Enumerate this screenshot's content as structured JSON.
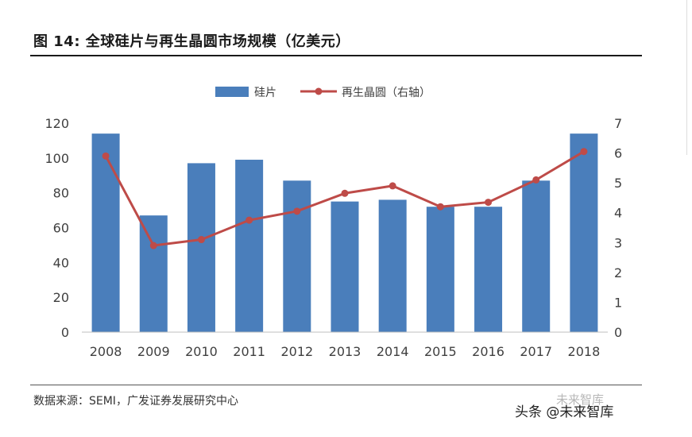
{
  "figure": {
    "title": "图 14: 全球硅片与再生晶圆市场规模（亿美元）",
    "source": "数据来源：SEMI，广发证券发展研究中心",
    "watermark": "头条 @未来智库",
    "watermark_ghost": "未来智库"
  },
  "chart_data": {
    "type": "bar",
    "categories": [
      "2008",
      "2009",
      "2010",
      "2011",
      "2012",
      "2013",
      "2014",
      "2015",
      "2016",
      "2017",
      "2018"
    ],
    "series": [
      {
        "name": "硅片",
        "type": "bar",
        "axis": "left",
        "color": "#4a7ebb",
        "values": [
          114,
          67,
          97,
          99,
          87,
          75,
          76,
          72,
          72,
          87,
          114
        ]
      },
      {
        "name": "再生晶圆（右轴）",
        "type": "line",
        "axis": "right",
        "color": "#be4b48",
        "values": [
          5.9,
          2.9,
          3.1,
          3.75,
          4.05,
          4.65,
          4.9,
          4.2,
          4.35,
          5.1,
          6.05
        ]
      }
    ],
    "ylim": [
      0,
      120
    ],
    "y_ticks": [
      0,
      20,
      40,
      60,
      80,
      100,
      120
    ],
    "y2lim": [
      0,
      7
    ],
    "y2_ticks": [
      0,
      1,
      2,
      3,
      4,
      5,
      6,
      7
    ],
    "grid": false,
    "legend_position": "top-center"
  }
}
